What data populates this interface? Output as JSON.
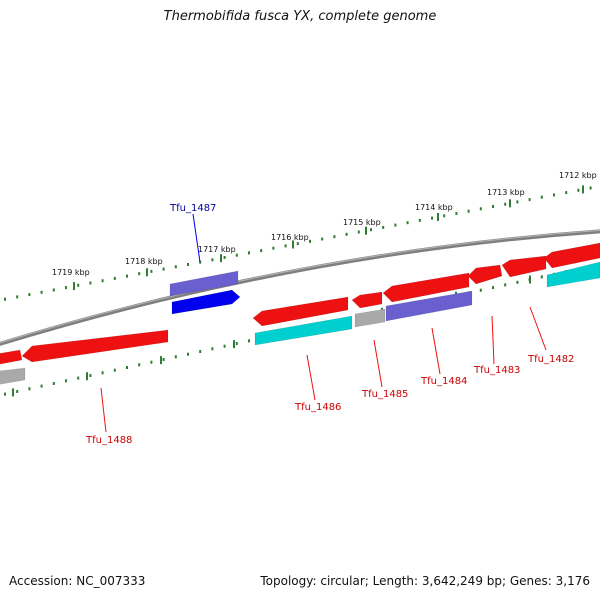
{
  "map": {
    "title": "Thermobifida fusca YX, complete genome",
    "accession": "Accession: NC_007333",
    "summary": "Topology: circular; Length: 3,642,249 bp; Genes: 3,176"
  },
  "colors": {
    "backbone": "#808080",
    "ticks": "#2e7d32",
    "gene_red": "#ee1111",
    "gene_blue": "#0000ee",
    "gene_slate": "#6a5fcf",
    "gene_cyan": "#00cfcf",
    "gene_gray": "#a9a9a9",
    "label_red": "#cc0000",
    "label_blue": "#000099"
  },
  "tick_labels": [
    "1719 kbp",
    "1718 kbp",
    "1717 kbp",
    "1716 kbp",
    "1715 kbp",
    "1714 kbp",
    "1713 kbp",
    "1712 kbp"
  ],
  "genes": [
    {
      "name": "Tfu_1488",
      "color_key": "gene_red"
    },
    {
      "name": "Tfu_1487",
      "color_key": "gene_blue"
    },
    {
      "name": "Tfu_1486",
      "color_key": "gene_red"
    },
    {
      "name": "Tfu_1485",
      "color_key": "gene_red"
    },
    {
      "name": "Tfu_1484",
      "color_key": "gene_red"
    },
    {
      "name": "Tfu_1483",
      "color_key": "gene_red"
    },
    {
      "name": "Tfu_1482",
      "color_key": "gene_red"
    }
  ]
}
